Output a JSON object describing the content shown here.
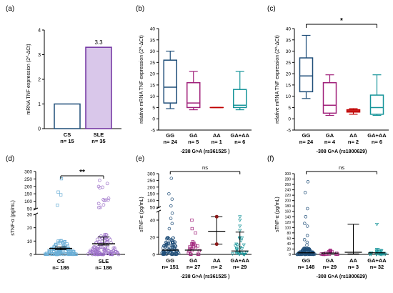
{
  "colors": {
    "blue": "#1f4e79",
    "purple": "#7030a0",
    "purple_fill": "#d9c7ea",
    "magenta": "#a0207a",
    "red": "#c00000",
    "teal": "#17959a",
    "dark_red": "#8b1a1a",
    "light_blue": "#6aaed6",
    "lavender": "#9b6fc8"
  },
  "chart_data": [
    {
      "panel": "(a)",
      "type": "bar",
      "ylabel": "mRNA TNF expression (2^-ΔCt)",
      "ylim": [
        0,
        4
      ],
      "yticks": [
        "0",
        "1",
        "2",
        "3",
        "4"
      ],
      "categories": [
        "CS",
        "SLE"
      ],
      "n": [
        "n= 15",
        "n= 35"
      ],
      "values": [
        1.0,
        3.3
      ],
      "data_labels": [
        "",
        "3.3"
      ]
    },
    {
      "panel": "(b)",
      "type": "box",
      "ylabel": "relative mRNA TNF expression (2^-ΔCt)",
      "xlabel": "-238 G>A  (rs361525 )",
      "ylim": [
        -5,
        40
      ],
      "yticks": [
        "-5",
        "0",
        "5",
        "10",
        "15",
        "20",
        "25",
        "30",
        "35",
        "40"
      ],
      "categories": [
        "GG",
        "GA",
        "AA",
        "GA+AA"
      ],
      "n": [
        "n= 24",
        "n= 5",
        "n= 1",
        "n= 6"
      ],
      "boxes": [
        {
          "min": 4.5,
          "q1": 7,
          "med": 14,
          "q3": 26,
          "max": 30
        },
        {
          "min": 4,
          "q1": 5,
          "med": 7,
          "q3": 16,
          "max": 21
        },
        {
          "min": 5,
          "q1": 5,
          "med": 5,
          "q3": 5,
          "max": 5
        },
        {
          "min": 4,
          "q1": 5,
          "med": 6,
          "q3": 13,
          "max": 21
        }
      ]
    },
    {
      "panel": "(c)",
      "type": "box",
      "ylabel": "relative mRNA TNF expression (2^-ΔCt)",
      "xlabel": "-308 G>A (rs1800629)",
      "ylim": [
        -5,
        40
      ],
      "yticks": [
        "-5",
        "0",
        "5",
        "10",
        "15",
        "20",
        "25",
        "30",
        "35",
        "40"
      ],
      "categories": [
        "GG",
        "GA",
        "AA",
        "GA+AA"
      ],
      "n": [
        "n= 24",
        "n= 4",
        "n= 2",
        "n= 6"
      ],
      "boxes": [
        {
          "min": 9,
          "q1": 12,
          "med": 19,
          "q3": 27,
          "max": 37
        },
        {
          "min": 1.5,
          "q1": 2.5,
          "med": 6,
          "q3": 16,
          "max": 19.5
        },
        {
          "min": 2,
          "q1": 3,
          "med": 3.5,
          "q3": 4,
          "max": 4.5
        },
        {
          "min": 1.5,
          "q1": 2,
          "med": 5,
          "q3": 10.5,
          "max": 19.5
        }
      ],
      "significance": "*"
    },
    {
      "panel": "(d)",
      "type": "scatter",
      "ylabel": "sTNF-α (pg/mL)",
      "categories": [
        "CS",
        "SLE"
      ],
      "n": [
        "n= 186",
        "n= 186"
      ],
      "yticks_low": [
        "0",
        "10",
        "20",
        "30"
      ],
      "yticks_high": [
        "50",
        "100",
        "150",
        "200",
        "250",
        "300"
      ],
      "median": [
        4.5,
        8
      ],
      "ci": [
        [
          3.5,
          5.5
        ],
        [
          7,
          13
        ]
      ],
      "significance": "**"
    },
    {
      "panel": "(e)",
      "type": "scatter",
      "ylabel": "sTNF-α (pg/mL)",
      "xlabel": "-238 G>A  (rs361525 )",
      "categories": [
        "GG",
        "GA",
        "AA",
        "GA+AA"
      ],
      "n": [
        "n= 151",
        "n= 27",
        "n= 2",
        "n= 29"
      ],
      "yticks_low": [
        "0",
        "20",
        "40"
      ],
      "yticks_high": [
        "50",
        "100",
        "150",
        "200",
        "250",
        "300"
      ],
      "significance": "ns"
    },
    {
      "panel": "(f)",
      "type": "scatter",
      "ylabel": "sTNF-α (pg/mL)",
      "xlabel": "-308 G>A (rs1800629)",
      "categories": [
        "GG",
        "GA",
        "AA",
        "GA+AA"
      ],
      "n": [
        "n= 148",
        "n= 29",
        "n= 3",
        "n= 32"
      ],
      "yticks": [
        "0",
        "20",
        "40",
        "60",
        "80",
        "100",
        "120",
        "140",
        "160",
        "180",
        "200",
        "220",
        "240",
        "260",
        "280",
        "300"
      ],
      "significance": "ns"
    }
  ]
}
